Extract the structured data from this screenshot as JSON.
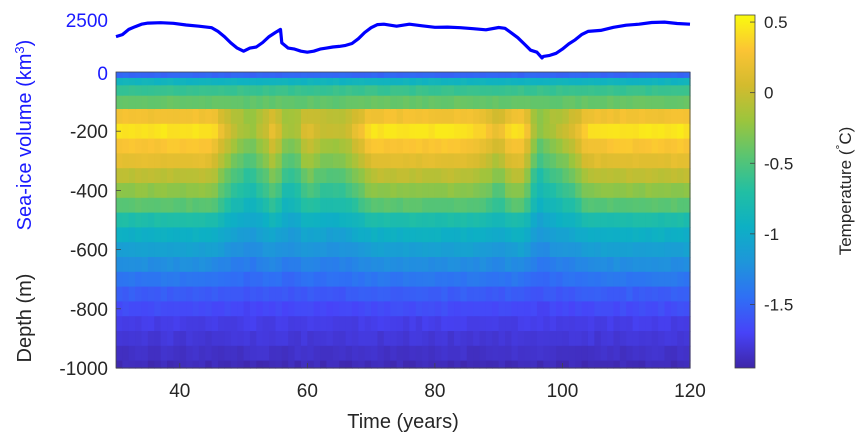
{
  "chart_data": [
    {
      "type": "line",
      "panel": "sea-ice",
      "ylabel_prefix": "Sea-ice volume (km",
      "ylabel_sup": "3",
      "ylabel_suffix": ")",
      "line_color": "#0000ff",
      "xlim": [
        30,
        120
      ],
      "ylim": [
        0,
        2500
      ],
      "yticks": [
        0,
        2500
      ],
      "yticklabels": [
        "0",
        "2500"
      ],
      "x": [
        30,
        31,
        32,
        33,
        34,
        35,
        37,
        39,
        41,
        43,
        45,
        46,
        47,
        48,
        49,
        50,
        51,
        52,
        53,
        54,
        55,
        55.8,
        56,
        57,
        58,
        59,
        60,
        61,
        62,
        63,
        64,
        65,
        66,
        67,
        68,
        69,
        70,
        71,
        72,
        74,
        76,
        78,
        80,
        82,
        84,
        86,
        88,
        90,
        91,
        92,
        93,
        94,
        95,
        96,
        96.8,
        97,
        98,
        99,
        100,
        101,
        102,
        103,
        104,
        106,
        108,
        110,
        112,
        114,
        116,
        118,
        120
      ],
      "y": [
        1700,
        1800,
        2050,
        2180,
        2300,
        2350,
        2370,
        2340,
        2260,
        2200,
        2130,
        1950,
        1700,
        1400,
        1150,
        1000,
        1150,
        1200,
        1420,
        1700,
        1900,
        2050,
        1400,
        1150,
        1100,
        1000,
        950,
        1000,
        1100,
        1150,
        1200,
        1230,
        1280,
        1370,
        1600,
        1900,
        2130,
        2280,
        2300,
        2200,
        2300,
        2220,
        2150,
        2160,
        2130,
        2080,
        2030,
        2140,
        2100,
        1880,
        1650,
        1350,
        1050,
        950,
        680,
        750,
        800,
        900,
        1100,
        1350,
        1550,
        1800,
        1950,
        2000,
        2150,
        2250,
        2300,
        2380,
        2400,
        2330,
        2300
      ]
    },
    {
      "type": "heatmap",
      "panel": "temperature",
      "xlabel": "Time (years)",
      "ylabel": "Depth (m)",
      "xlim": [
        30,
        120
      ],
      "xticks": [
        40,
        60,
        80,
        100,
        120
      ],
      "xticklabels": [
        "40",
        "60",
        "80",
        "100",
        "120"
      ],
      "ylim": [
        -1000,
        0
      ],
      "yticks": [
        -200,
        -400,
        -600,
        -800,
        -1000
      ],
      "yticklabels": [
        "-200",
        "-400",
        "-600",
        "-800",
        "-1000"
      ],
      "colorbar": {
        "label": "Temperature (",
        "label_degree": "°",
        "label_unit": "C)",
        "range": [
          -1.95,
          0.55
        ],
        "ticks": [
          0.5,
          0,
          -0.5,
          -1,
          -1.5
        ],
        "ticklabels": [
          "0.5",
          "0",
          "-0.5",
          "-1",
          "-1.5"
        ],
        "colormap": [
          "#3e26a8",
          "#4743f8",
          "#2f6ff5",
          "#1e96da",
          "#0db0c4",
          "#22bfa3",
          "#5ac571",
          "#9bc53d",
          "#d3bb2e",
          "#fbc434",
          "#f9fb0e"
        ]
      },
      "depth_profile": {
        "depth": [
          -10,
          -30,
          -60,
          -100,
          -150,
          -200,
          -250,
          -300,
          -350,
          -400,
          -450,
          -500,
          -550,
          -600,
          -650,
          -700,
          -750,
          -800,
          -850,
          -900,
          -950,
          -1000
        ],
        "warm_temperature": [
          -1.5,
          -0.9,
          -0.6,
          -0.4,
          0.25,
          0.45,
          0.3,
          0.15,
          -0.05,
          -0.25,
          -0.45,
          -0.75,
          -0.95,
          -1.1,
          -1.25,
          -1.4,
          -1.55,
          -1.65,
          -1.75,
          -1.8,
          -1.85,
          -1.9
        ],
        "cool_temperature": [
          -1.5,
          -0.9,
          -0.6,
          -0.45,
          -0.3,
          -0.35,
          -0.5,
          -0.65,
          -0.8,
          -0.9,
          -1.0,
          -1.1,
          -1.2,
          -1.3,
          -1.4,
          -1.5,
          -1.6,
          -1.7,
          -1.75,
          -1.8,
          -1.85,
          -1.9
        ]
      },
      "warm_fraction": {
        "x": [
          30,
          45,
          48,
          51,
          53.5,
          55,
          56,
          58,
          60,
          62,
          65,
          67,
          70,
          75,
          85,
          88,
          90,
          92,
          94,
          95.5,
          96.5,
          98,
          100,
          102,
          104,
          110,
          120
        ],
        "f": [
          1,
          1,
          0.45,
          0.15,
          0.45,
          0.8,
          0.25,
          0.2,
          0.65,
          0.45,
          0.4,
          0.55,
          1,
          1,
          1,
          0.85,
          0.6,
          1,
          0.95,
          0.3,
          0.1,
          0.25,
          0.4,
          0.6,
          0.95,
          1,
          1
        ]
      }
    }
  ]
}
